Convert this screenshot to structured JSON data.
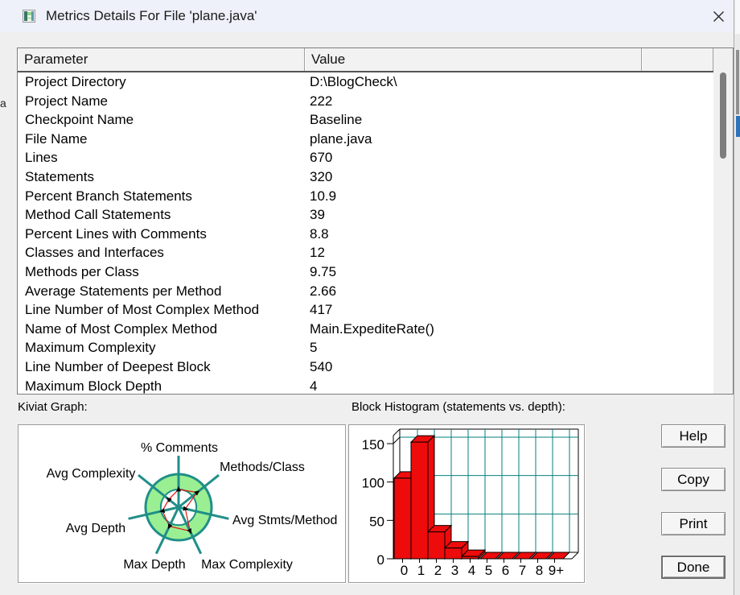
{
  "window": {
    "title": "Metrics Details For File 'plane.java'",
    "icon": "app-icon"
  },
  "table": {
    "columns": [
      "Parameter",
      "Value"
    ],
    "rows": [
      {
        "param": "Project Directory",
        "value": "D:\\BlogCheck\\"
      },
      {
        "param": "Project Name",
        "value": "222"
      },
      {
        "param": "Checkpoint Name",
        "value": "Baseline"
      },
      {
        "param": "File Name",
        "value": "plane.java"
      },
      {
        "param": "Lines",
        "value": "670"
      },
      {
        "param": "Statements",
        "value": "320"
      },
      {
        "param": "Percent Branch Statements",
        "value": "10.9"
      },
      {
        "param": "Method Call Statements",
        "value": "39"
      },
      {
        "param": "Percent Lines with Comments",
        "value": "8.8"
      },
      {
        "param": "Classes and Interfaces",
        "value": "12"
      },
      {
        "param": "Methods per Class",
        "value": "9.75"
      },
      {
        "param": "Average Statements per Method",
        "value": "2.66"
      },
      {
        "param": "Line Number of Most Complex Method",
        "value": "417"
      },
      {
        "param": "Name of Most Complex Method",
        "value": "Main.ExpediteRate()"
      },
      {
        "param": "Maximum Complexity",
        "value": "5"
      },
      {
        "param": "Line Number of Deepest Block",
        "value": "540"
      },
      {
        "param": "Maximum Block Depth",
        "value": "4"
      }
    ]
  },
  "sections": {
    "kiviat_label": "Kiviat Graph:",
    "histogram_label": "Block Histogram (statements vs. depth):"
  },
  "buttons": {
    "help": "Help",
    "copy": "Copy",
    "print": "Print",
    "done": "Done"
  },
  "colors": {
    "teal": "#1f8f88",
    "grid_teal": "#067f7f",
    "ring_green": "#9bef93",
    "polygon_red": "#e01313",
    "bar_red": "#ee0b0b",
    "titlebar": "#eef1fa"
  },
  "stray_text": "a",
  "chart_data": [
    {
      "type": "radar",
      "title": "Kiviat Graph",
      "legend_position": "none",
      "grid": "ring (healthy band between inner and outer circle)",
      "inner_ring_fraction": 0.54,
      "outer_ring_fraction": 1.0,
      "axes": [
        {
          "label": "% Comments",
          "angle_deg": 90.0,
          "value_fraction": 0.54
        },
        {
          "label": "Methods/Class",
          "angle_deg": 38.6,
          "value_fraction": 0.72
        },
        {
          "label": "Avg Stmts/Method",
          "angle_deg": -12.9,
          "value_fraction": 0.21
        },
        {
          "label": "Max Complexity",
          "angle_deg": -64.3,
          "value_fraction": 0.8
        },
        {
          "label": "Max Depth",
          "angle_deg": -115.7,
          "value_fraction": 0.64
        },
        {
          "label": "Avg Depth",
          "angle_deg": -167.1,
          "value_fraction": 0.5
        },
        {
          "label": "Avg Complexity",
          "angle_deg": 141.4,
          "value_fraction": 0.38
        }
      ]
    },
    {
      "type": "bar",
      "title": "Block Histogram (statements vs. depth)",
      "style": "3d",
      "categories": [
        "0",
        "1",
        "2",
        "3",
        "4",
        "5",
        "6",
        "7",
        "8",
        "9+"
      ],
      "values": [
        105,
        152,
        35,
        14,
        3,
        0,
        0,
        0,
        0,
        0
      ],
      "xlabel": "depth",
      "ylabel": "statements",
      "yticks": [
        0,
        50,
        100,
        150
      ],
      "ylim": [
        0,
        160
      ],
      "grid": true,
      "legend_position": "none"
    }
  ]
}
